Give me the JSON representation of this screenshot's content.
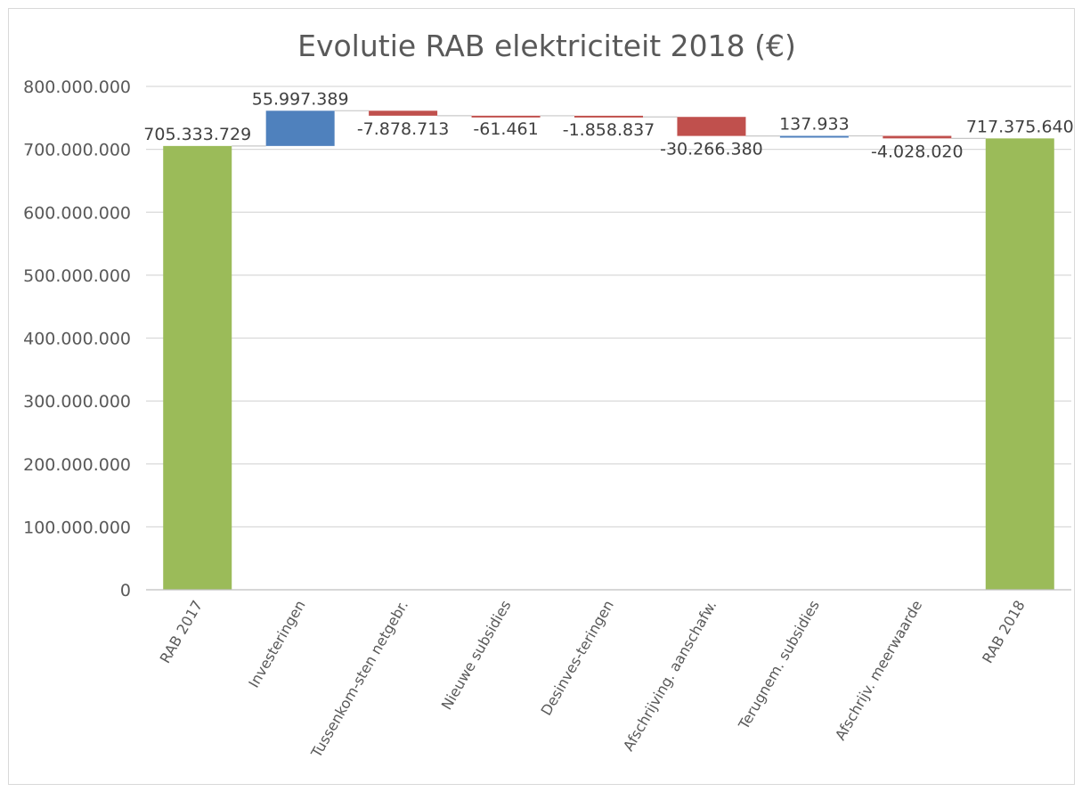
{
  "chart_data": {
    "type": "bar",
    "subtype": "waterfall",
    "title": "Evolutie RAB elektriciteit 2018 (€)",
    "categories": [
      "RAB 2017",
      "Investeringen",
      "Tussenkom-sten netgebr.",
      "Nieuwe subsidies",
      "Desinves-teringen",
      "Afschrijving. aanschafw.",
      "Terugnem. subsidies",
      "Afschrijv. meerwaarde",
      "RAB 2018"
    ],
    "values": [
      705333729,
      55997389,
      -7878713,
      -61461,
      -1858837,
      -30266380,
      137933,
      -4028020,
      717375640
    ],
    "kinds": [
      "total",
      "delta",
      "delta",
      "delta",
      "delta",
      "delta",
      "delta",
      "delta",
      "total"
    ],
    "value_labels": [
      "705.333.729",
      "55.997.389",
      "-7.878.713",
      "-61.461",
      "-1.858.837",
      "-30.266.380",
      "137.933",
      "-4.028.020",
      "717.375.640"
    ],
    "xlabel": "",
    "ylabel": "",
    "ylim": [
      0,
      800000000
    ],
    "yticks": [
      0,
      100000000,
      200000000,
      300000000,
      400000000,
      500000000,
      600000000,
      700000000,
      800000000
    ],
    "ytick_labels": [
      "0",
      "100.000.000",
      "200.000.000",
      "300.000.000",
      "400.000.000",
      "500.000.000",
      "600.000.000",
      "700.000.000",
      "800.000.000"
    ],
    "grid": true,
    "legend": "none",
    "colors": {
      "total": "#9bbb59",
      "increase": "#4f81bd",
      "decrease": "#c0504d"
    }
  }
}
